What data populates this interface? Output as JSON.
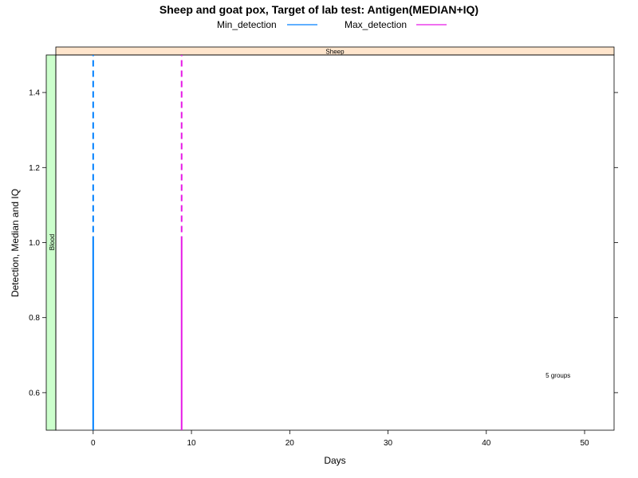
{
  "chart_data": {
    "type": "line",
    "title": "Sheep and goat pox, Target of lab test: Antigen(MEDIAN+IQ)",
    "xlabel": "Days",
    "ylabel": "Detection, Median and IQ",
    "xlim": [
      -3.8,
      53
    ],
    "ylim": [
      0.5,
      1.5
    ],
    "x_ticks": [
      0,
      10,
      20,
      30,
      40,
      50
    ],
    "y_ticks": [
      0.6,
      0.8,
      1.0,
      1.2,
      1.4
    ],
    "x_tick_labels": [
      "0",
      "10",
      "20",
      "30",
      "40",
      "50"
    ],
    "y_tick_labels": [
      "0.6",
      "0.8",
      "1.0",
      "1.2",
      "1.4"
    ],
    "legend_position": "top",
    "strip_top": "Sheep",
    "strip_left": "Blood",
    "annotation": {
      "text": "5 groups",
      "x": 47.3,
      "y": 0.647
    },
    "series": [
      {
        "name": "Min_detection",
        "color": "#0080ff",
        "x": 0,
        "solid_range": [
          0.5,
          1.0
        ],
        "dashed_range": [
          1.0,
          1.5
        ]
      },
      {
        "name": "Max_detection",
        "color": "#e619e6",
        "x": 9,
        "solid_range": [
          0.5,
          1.0
        ],
        "dashed_range": [
          1.0,
          1.5
        ]
      }
    ]
  }
}
